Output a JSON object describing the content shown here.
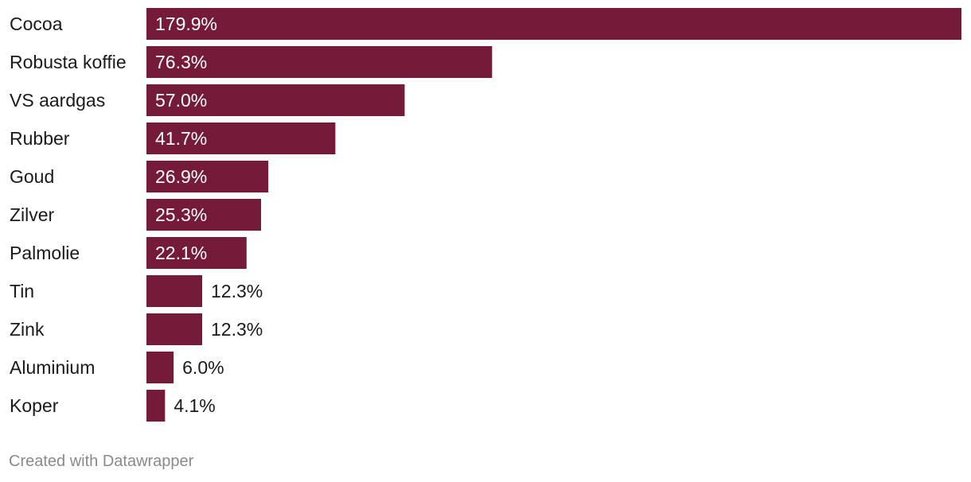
{
  "chart_data": {
    "type": "bar",
    "orientation": "horizontal",
    "categories": [
      "Cocoa",
      "Robusta koffie",
      "VS aardgas",
      "Rubber",
      "Goud",
      "Zilver",
      "Palmolie",
      "Tin",
      "Zink",
      "Aluminium",
      "Koper"
    ],
    "values": [
      179.9,
      76.3,
      57.0,
      41.7,
      26.9,
      25.3,
      22.1,
      12.3,
      12.3,
      6.0,
      4.1
    ],
    "value_labels": [
      "179.9%",
      "76.3%",
      "57.0%",
      "41.7%",
      "26.9%",
      "25.3%",
      "22.1%",
      "12.3%",
      "12.3%",
      "6.0%",
      "4.1%"
    ],
    "bar_color": "#751a38",
    "inside_label_color": "#ffffff",
    "outside_label_color": "#1a1a1a",
    "xlim": [
      0,
      179.9
    ],
    "grid": false,
    "legend": "none"
  },
  "footer": {
    "credit": "Created with Datawrapper"
  }
}
